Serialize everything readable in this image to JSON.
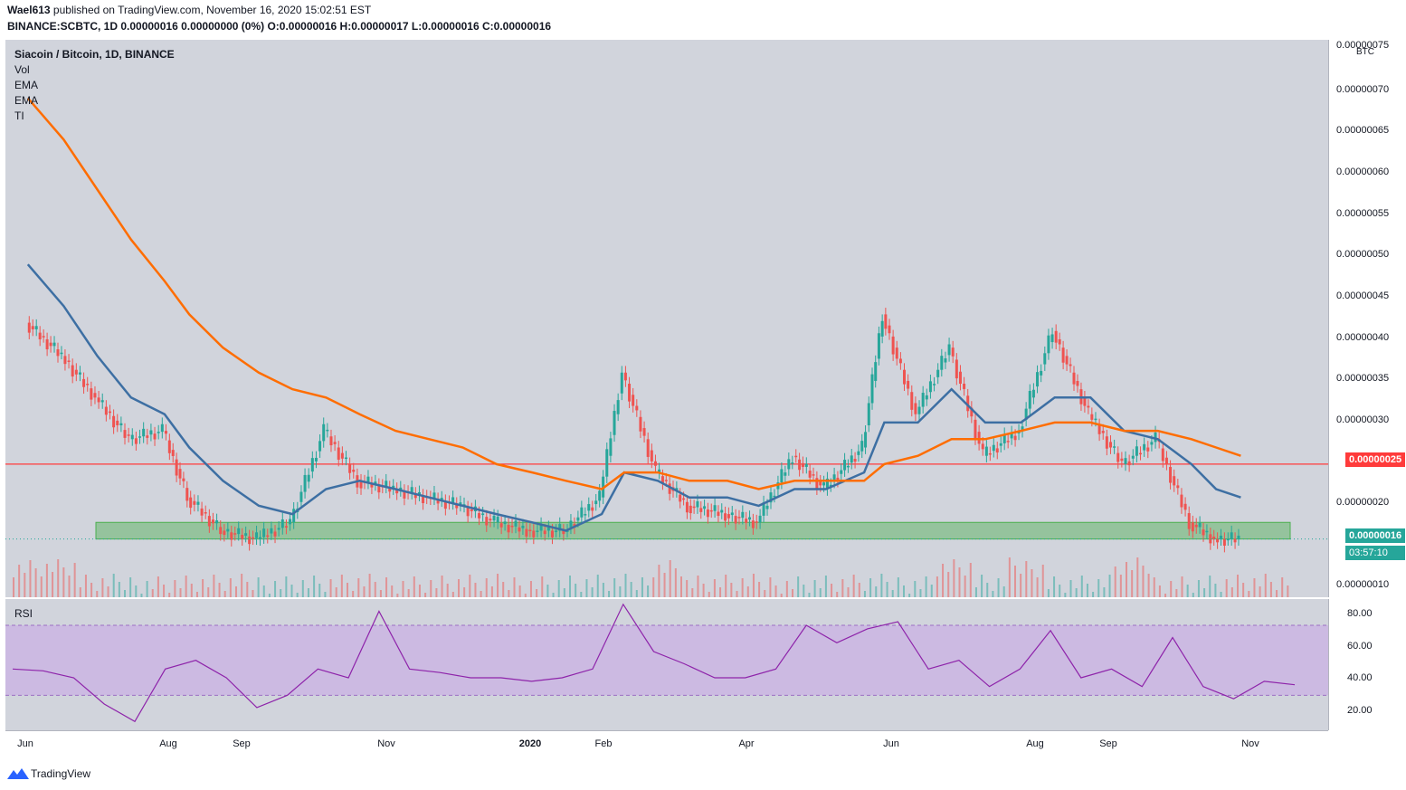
{
  "header": {
    "user": "Wael613",
    "published": " published on TradingView.com, November 16, 2020 15:02:51 EST",
    "symbol_line": "BINANCE:SCBTC, 1D  0.00000016  0.00000000 (0%)  O:0.00000016  H:0.00000017  L:0.00000016  C:0.00000016"
  },
  "legend": {
    "title": "Siacoin / Bitcoin, 1D, BINANCE",
    "items": [
      "Vol",
      "EMA",
      "EMA",
      "TI"
    ]
  },
  "rsi_legend": "RSI",
  "price_axis": {
    "unit": "BTC",
    "ticks": [
      "0.00000075",
      "0.00000070",
      "0.00000065",
      "0.00000060",
      "0.00000055",
      "0.00000050",
      "0.00000045",
      "0.00000040",
      "0.00000035",
      "0.00000030",
      "0.00000020",
      "0.00000010"
    ],
    "resistance_tag": "0.00000025",
    "last_price_tag": "0.00000016",
    "countdown": "03:57:10"
  },
  "rsi_axis": {
    "ticks": [
      "80.00",
      "60.00",
      "40.00",
      "20.00"
    ]
  },
  "time_axis": [
    "Jun",
    "Aug",
    "Sep",
    "Nov",
    "2020",
    "Feb",
    "Apr",
    "Jun",
    "Aug",
    "Sep",
    "Nov"
  ],
  "footer": {
    "brand": "TradingView"
  },
  "colors": {
    "background": "#d1d4dc",
    "ema_fast": "#3d6fa3",
    "ema_slow": "#ff6d00",
    "resistance": "#ff3b3b",
    "support_zone": "#4caf50",
    "bull": "#26a69a",
    "bear": "#ef5350",
    "rsi": "#8e24aa",
    "rsi_band": "#c8a8e6"
  },
  "chart_data": {
    "type": "line",
    "title": "Siacoin / Bitcoin, 1D, BINANCE",
    "ylabel": "BTC",
    "ylim": [
      9e-08,
      7.6e-07
    ],
    "x": [
      "2019-05-25",
      "2019-06-10",
      "2019-06-25",
      "2019-07-10",
      "2019-07-25",
      "2019-08-05",
      "2019-08-20",
      "2019-09-05",
      "2019-09-20",
      "2019-10-05",
      "2019-10-20",
      "2019-11-05",
      "2019-11-20",
      "2019-12-05",
      "2019-12-20",
      "2020-01-05",
      "2020-01-20",
      "2020-02-05",
      "2020-02-15",
      "2020-03-01",
      "2020-03-15",
      "2020-04-01",
      "2020-04-15",
      "2020-05-01",
      "2020-05-15",
      "2020-06-01",
      "2020-06-10",
      "2020-06-25",
      "2020-07-10",
      "2020-07-25",
      "2020-08-10",
      "2020-08-25",
      "2020-09-10",
      "2020-09-25",
      "2020-10-10",
      "2020-10-25",
      "2020-11-05",
      "2020-11-16"
    ],
    "series": [
      {
        "name": "close",
        "values": [
          4.2e-07,
          3.8e-07,
          3.3e-07,
          2.8e-07,
          2.9e-07,
          2.1e-07,
          1.7e-07,
          1.6e-07,
          1.8e-07,
          2.9e-07,
          2.3e-07,
          2.2e-07,
          2.1e-07,
          2e-07,
          1.8e-07,
          1.7e-07,
          1.7e-07,
          2.1e-07,
          3.6e-07,
          2.4e-07,
          2e-07,
          1.9e-07,
          1.8e-07,
          2.6e-07,
          2.2e-07,
          2.7e-07,
          4.3e-07,
          3.1e-07,
          3.9e-07,
          2.6e-07,
          2.9e-07,
          4.1e-07,
          3.1e-07,
          2.5e-07,
          2.8e-07,
          1.8e-07,
          1.6e-07,
          1.6e-07
        ]
      },
      {
        "name": "EMA",
        "values": [
          4.9e-07,
          4.4e-07,
          3.8e-07,
          3.3e-07,
          3.1e-07,
          2.7e-07,
          2.3e-07,
          2e-07,
          1.9e-07,
          2.2e-07,
          2.3e-07,
          2.2e-07,
          2.1e-07,
          2e-07,
          1.9e-07,
          1.8e-07,
          1.7e-07,
          1.9e-07,
          2.4e-07,
          2.3e-07,
          2.1e-07,
          2.1e-07,
          2e-07,
          2.2e-07,
          2.2e-07,
          2.4e-07,
          3e-07,
          3e-07,
          3.4e-07,
          3e-07,
          3e-07,
          3.3e-07,
          3.3e-07,
          2.9e-07,
          2.8e-07,
          2.5e-07,
          2.2e-07,
          2.1e-07
        ]
      },
      {
        "name": "EMA",
        "values": [
          6.9e-07,
          6.4e-07,
          5.8e-07,
          5.2e-07,
          4.7e-07,
          4.3e-07,
          3.9e-07,
          3.6e-07,
          3.4e-07,
          3.3e-07,
          3.1e-07,
          2.9e-07,
          2.8e-07,
          2.7e-07,
          2.5e-07,
          2.4e-07,
          2.3e-07,
          2.2e-07,
          2.4e-07,
          2.4e-07,
          2.3e-07,
          2.3e-07,
          2.2e-07,
          2.3e-07,
          2.3e-07,
          2.3e-07,
          2.5e-07,
          2.6e-07,
          2.8e-07,
          2.8e-07,
          2.9e-07,
          3e-07,
          3e-07,
          2.9e-07,
          2.9e-07,
          2.8e-07,
          2.7e-07,
          2.6e-07
        ]
      }
    ],
    "resistance_level": 2.5e-07,
    "support_zone": [
      1.6e-07,
      1.8e-07
    ],
    "rsi": {
      "ylim": [
        10,
        85
      ],
      "band": [
        30,
        70
      ],
      "values": [
        45,
        44,
        40,
        25,
        15,
        45,
        50,
        40,
        23,
        30,
        45,
        40,
        78,
        45,
        43,
        40,
        40,
        38,
        40,
        45,
        82,
        55,
        48,
        40,
        40,
        45,
        70,
        60,
        68,
        72,
        45,
        50,
        35,
        45,
        67,
        40,
        45,
        35,
        63,
        35,
        28,
        38,
        36
      ]
    }
  }
}
